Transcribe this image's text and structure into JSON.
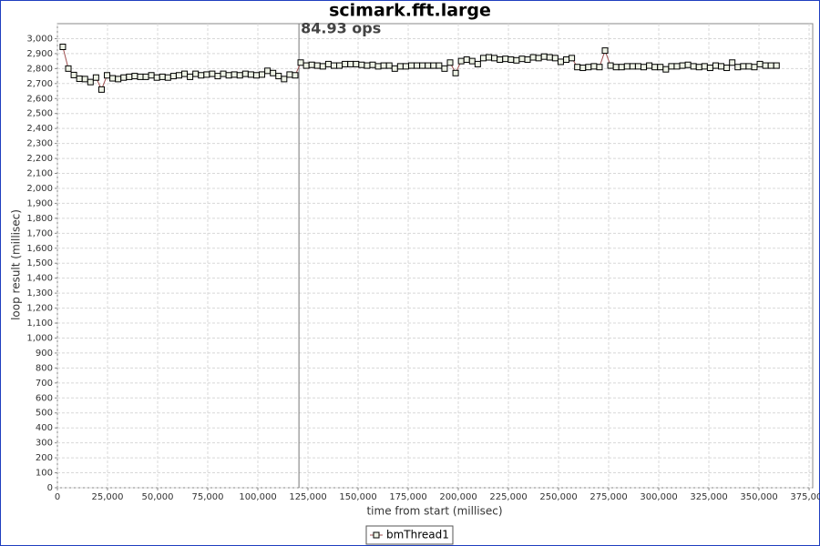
{
  "chart_data": {
    "type": "line",
    "title": "scimark.fft.large",
    "xlabel": "time from start (millisec)",
    "ylabel": "loop result (millisec)",
    "annotation": "84.93 ops",
    "marker_x": 120500,
    "grid": true,
    "legend": "bottom",
    "xlim": [
      0,
      376800
    ],
    "ylim": [
      0,
      3100
    ],
    "xticks": [
      0,
      {
        "value": 25000,
        "label": "25,000"
      },
      {
        "value": 50000,
        "label": "50,000"
      },
      {
        "value": 75000,
        "label": "75,000"
      },
      {
        "value": 100000,
        "label": "100,000"
      },
      {
        "value": 125000,
        "label": "125,000"
      },
      {
        "value": 150000,
        "label": "150,000"
      },
      {
        "value": 175000,
        "label": "175,000"
      },
      {
        "value": 200000,
        "label": "200,000"
      },
      {
        "value": 225000,
        "label": "225,000"
      },
      {
        "value": 250000,
        "label": "250,000"
      },
      {
        "value": 275000,
        "label": "275,000"
      },
      {
        "value": 300000,
        "label": "300,000"
      },
      {
        "value": 325000,
        "label": "325,000"
      },
      {
        "value": 350000,
        "label": "350,000"
      },
      {
        "value": 375000,
        "label": "375,000"
      }
    ],
    "yticks": [
      0,
      100,
      200,
      300,
      400,
      500,
      600,
      700,
      800,
      900,
      {
        "value": 1000,
        "label": "1,000"
      },
      {
        "value": 1100,
        "label": "1,100"
      },
      {
        "value": 1200,
        "label": "1,200"
      },
      {
        "value": 1300,
        "label": "1,300"
      },
      {
        "value": 1400,
        "label": "1,400"
      },
      {
        "value": 1500,
        "label": "1,500"
      },
      {
        "value": 1600,
        "label": "1,600"
      },
      {
        "value": 1700,
        "label": "1,700"
      },
      {
        "value": 1800,
        "label": "1,800"
      },
      {
        "value": 1900,
        "label": "1,900"
      },
      {
        "value": 2000,
        "label": "2,000"
      },
      {
        "value": 2100,
        "label": "2,100"
      },
      {
        "value": 2200,
        "label": "2,200"
      },
      {
        "value": 2300,
        "label": "2,300"
      },
      {
        "value": 2400,
        "label": "2,400"
      },
      {
        "value": 2500,
        "label": "2,500"
      },
      {
        "value": 2600,
        "label": "2,600"
      },
      {
        "value": 2700,
        "label": "2,700"
      },
      {
        "value": 2800,
        "label": "2,800"
      },
      {
        "value": 2900,
        "label": "2,900"
      },
      {
        "value": 3000,
        "label": "3,000"
      }
    ],
    "x": [
      2700,
      5460,
      8220,
      10980,
      13740,
      16500,
      19260,
      22020,
      24780,
      27540,
      30300,
      33060,
      35820,
      38580,
      41340,
      44100,
      46860,
      49620,
      52380,
      55140,
      57900,
      60660,
      63420,
      66180,
      68940,
      71700,
      74460,
      77220,
      79980,
      82740,
      85500,
      88260,
      91020,
      93780,
      96540,
      99300,
      102060,
      104820,
      107580,
      110340,
      113100,
      115860,
      118620,
      121380,
      124140,
      126900,
      129660,
      132420,
      135180,
      137940,
      140700,
      143460,
      146220,
      148980,
      151740,
      154500,
      157260,
      160020,
      162780,
      165540,
      168300,
      171060,
      173820,
      176580,
      179340,
      182100,
      184860,
      187620,
      190380,
      193140,
      195900,
      198660,
      201420,
      204180,
      206940,
      209700,
      212460,
      215220,
      217980,
      220740,
      223500,
      226260,
      229020,
      231780,
      234540,
      237300,
      240060,
      242820,
      245580,
      248340,
      251100,
      253860,
      256620,
      259380,
      262140,
      264900,
      267660,
      270420,
      273180,
      275940,
      278700,
      281460,
      284220,
      286980,
      289740,
      292500,
      295260,
      298020,
      300780,
      303540,
      306300,
      309060,
      311820,
      314580,
      317340,
      320100,
      322860,
      325620,
      328380,
      331140,
      333900,
      336660,
      339420,
      342180,
      344940,
      347700,
      350460,
      353220,
      355980,
      358740
    ],
    "series": [
      {
        "name": "bmThread1",
        "color": "#a05050",
        "marker_fill": "#eef3e6",
        "values": [
          2945,
          2800,
          2757,
          2732,
          2730,
          2710,
          2740,
          2660,
          2755,
          2735,
          2730,
          2740,
          2745,
          2750,
          2745,
          2745,
          2755,
          2740,
          2745,
          2740,
          2750,
          2755,
          2765,
          2745,
          2765,
          2755,
          2760,
          2765,
          2750,
          2765,
          2755,
          2760,
          2755,
          2765,
          2760,
          2755,
          2760,
          2785,
          2770,
          2750,
          2730,
          2760,
          2755,
          2840,
          2820,
          2825,
          2820,
          2815,
          2830,
          2820,
          2820,
          2830,
          2830,
          2830,
          2825,
          2820,
          2825,
          2815,
          2820,
          2820,
          2800,
          2815,
          2815,
          2820,
          2820,
          2820,
          2820,
          2820,
          2820,
          2800,
          2840,
          2770,
          2850,
          2860,
          2850,
          2830,
          2870,
          2875,
          2870,
          2860,
          2865,
          2860,
          2855,
          2865,
          2860,
          2875,
          2870,
          2880,
          2875,
          2870,
          2845,
          2860,
          2870,
          2810,
          2805,
          2810,
          2815,
          2810,
          2920,
          2820,
          2810,
          2810,
          2815,
          2815,
          2815,
          2810,
          2820,
          2810,
          2810,
          2795,
          2815,
          2815,
          2820,
          2825,
          2815,
          2810,
          2815,
          2805,
          2820,
          2815,
          2805,
          2840,
          2810,
          2815,
          2815,
          2810,
          2830,
          2820,
          2820,
          2820
        ]
      }
    ]
  }
}
